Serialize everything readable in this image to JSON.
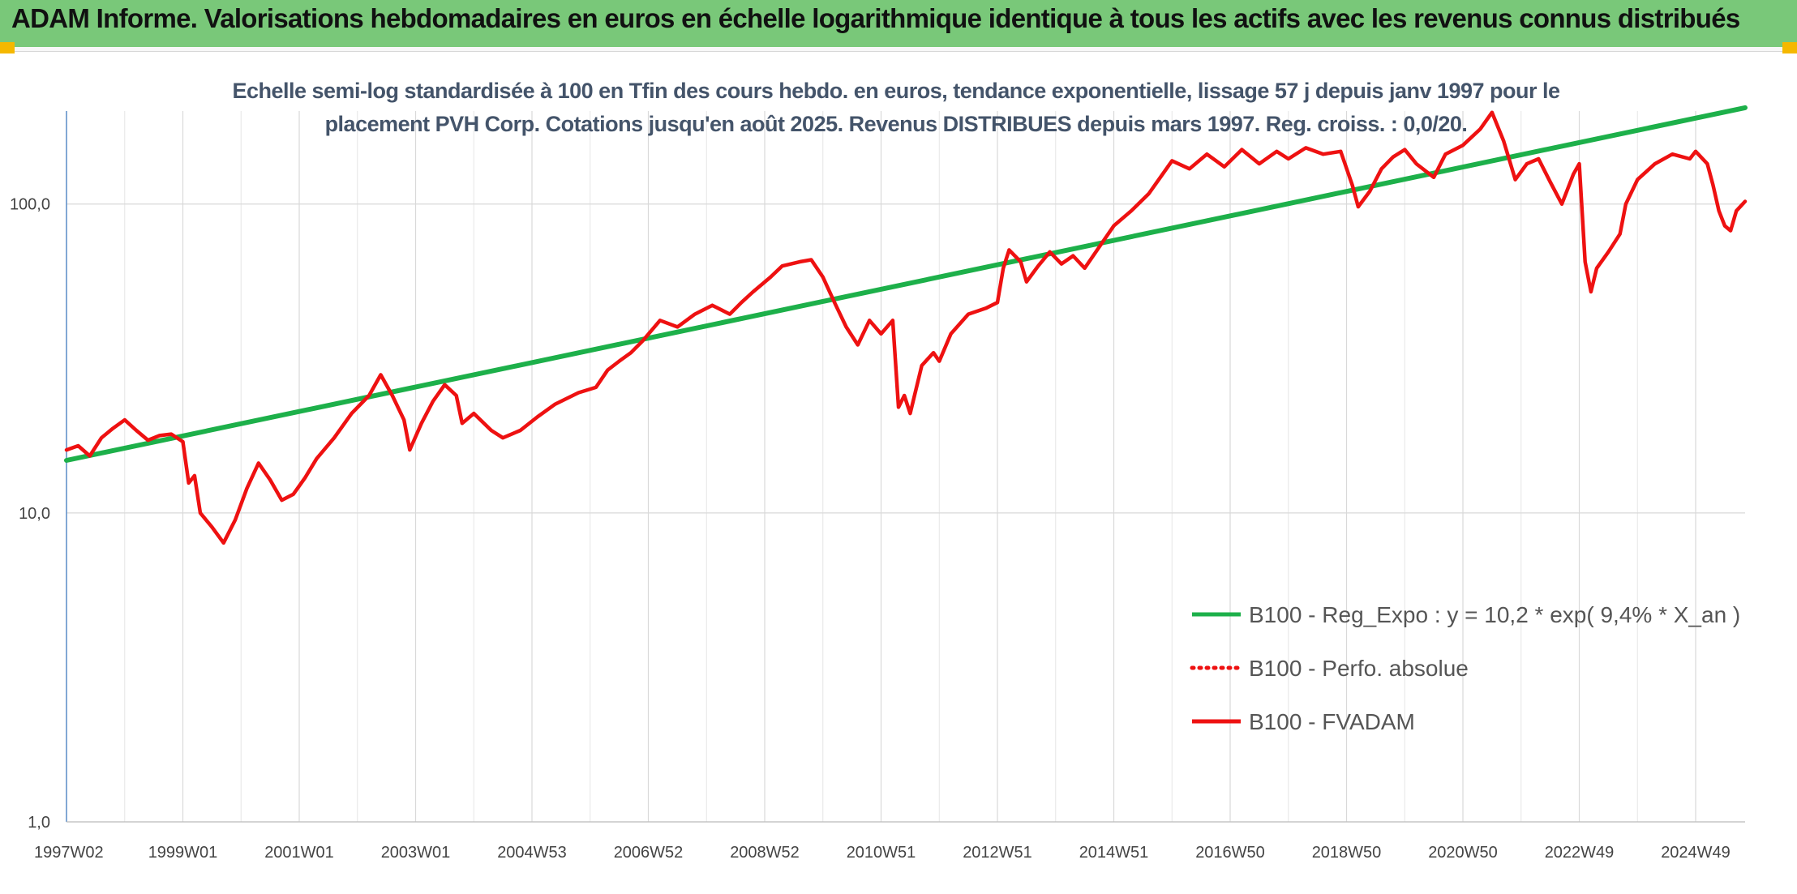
{
  "header": {
    "title": "ADAM Informe. Valorisations hebdomadaires en euros en échelle logarithmique identique à tous les actifs avec les revenus connus distribués"
  },
  "colors": {
    "header_bg": "#79c879",
    "accent": "#f5b800",
    "series_red": "#ee1111",
    "series_green": "#1db04a"
  },
  "chart_data": {
    "type": "line",
    "title": "Echelle semi-log standardisée à 100 en Tfin des cours hebdo. en euros, tendance exponentielle, lissage 57 j depuis janv 1997 pour le placement PVH Corp. Cotations jusqu'en août 2025. Revenus DISTRIBUES depuis mars 1997. Reg. croiss. : 0,0/20.",
    "title_lines": [
      "Echelle semi-log standardisée à 100 en Tfin des cours hebdo. en euros, tendance exponentielle, lissage 57 j depuis janv 1997 pour le",
      "placement PVH Corp. Cotations jusqu'en août 2025. Revenus DISTRIBUES depuis mars 1997. Reg. croiss. : 0,0/20."
    ],
    "y_scale": "log",
    "ylim": [
      1,
      200
    ],
    "xlim": [
      1997.0,
      2025.85
    ],
    "y_ticks": [
      {
        "value": 1,
        "label": "1,0"
      },
      {
        "value": 10,
        "label": "10,0"
      },
      {
        "value": 100,
        "label": "100,0"
      }
    ],
    "x_ticks": [
      {
        "value": 1997.0,
        "label": "1997W02"
      },
      {
        "value": 1999.0,
        "label": "1999W01"
      },
      {
        "value": 2001.0,
        "label": "2001W01"
      },
      {
        "value": 2003.0,
        "label": "2003W01"
      },
      {
        "value": 2005.0,
        "label": "2004W53"
      },
      {
        "value": 2007.0,
        "label": "2006W52"
      },
      {
        "value": 2009.0,
        "label": "2008W52"
      },
      {
        "value": 2011.0,
        "label": "2010W51"
      },
      {
        "value": 2013.0,
        "label": "2012W51"
      },
      {
        "value": 2015.0,
        "label": "2014W51"
      },
      {
        "value": 2017.0,
        "label": "2016W50"
      },
      {
        "value": 2019.0,
        "label": "2018W50"
      },
      {
        "value": 2021.0,
        "label": "2020W50"
      },
      {
        "value": 2023.0,
        "label": "2022W49"
      },
      {
        "value": 2025.0,
        "label": "2024W49"
      }
    ],
    "grid": true,
    "legend_position": "bottom-right",
    "series": [
      {
        "name": "B100 - Reg_Expo : y = 10,2 * exp( 9,4% *  X_an )",
        "color": "#1db04a",
        "style": "solid",
        "points": [
          [
            1997.0,
            14.8
          ],
          [
            2025.85,
            205
          ]
        ]
      },
      {
        "name": "B100 - Perfo. absolue",
        "color": "#ee1111",
        "style": "dotted",
        "points": []
      },
      {
        "name": "B100 - FVADAM",
        "color": "#ee1111",
        "style": "solid",
        "points": [
          [
            1997.0,
            16.0
          ],
          [
            1997.2,
            16.5
          ],
          [
            1997.4,
            15.3
          ],
          [
            1997.6,
            17.5
          ],
          [
            1997.8,
            18.8
          ],
          [
            1998.0,
            20.0
          ],
          [
            1998.2,
            18.5
          ],
          [
            1998.4,
            17.2
          ],
          [
            1998.6,
            17.8
          ],
          [
            1998.8,
            18.0
          ],
          [
            1999.0,
            17.0
          ],
          [
            1999.1,
            12.5
          ],
          [
            1999.2,
            13.2
          ],
          [
            1999.3,
            10.0
          ],
          [
            1999.5,
            9.0
          ],
          [
            1999.7,
            8.0
          ],
          [
            1999.9,
            9.5
          ],
          [
            2000.1,
            12.0
          ],
          [
            2000.3,
            14.5
          ],
          [
            2000.5,
            12.8
          ],
          [
            2000.7,
            11.0
          ],
          [
            2000.9,
            11.5
          ],
          [
            2001.1,
            13.0
          ],
          [
            2001.3,
            15.0
          ],
          [
            2001.6,
            17.5
          ],
          [
            2001.9,
            21.0
          ],
          [
            2002.2,
            24.0
          ],
          [
            2002.4,
            28.0
          ],
          [
            2002.6,
            24.0
          ],
          [
            2002.8,
            20.0
          ],
          [
            2002.9,
            16.0
          ],
          [
            2003.1,
            19.5
          ],
          [
            2003.3,
            23.0
          ],
          [
            2003.5,
            26.0
          ],
          [
            2003.7,
            24.0
          ],
          [
            2003.8,
            19.5
          ],
          [
            2004.0,
            21.0
          ],
          [
            2004.3,
            18.5
          ],
          [
            2004.5,
            17.5
          ],
          [
            2004.8,
            18.5
          ],
          [
            2005.1,
            20.5
          ],
          [
            2005.4,
            22.5
          ],
          [
            2005.8,
            24.5
          ],
          [
            2006.1,
            25.5
          ],
          [
            2006.3,
            29.0
          ],
          [
            2006.5,
            31.0
          ],
          [
            2006.7,
            33.0
          ],
          [
            2006.9,
            36.0
          ],
          [
            2007.2,
            42.0
          ],
          [
            2007.5,
            40.0
          ],
          [
            2007.8,
            44.0
          ],
          [
            2008.1,
            47.0
          ],
          [
            2008.4,
            44.0
          ],
          [
            2008.6,
            48.0
          ],
          [
            2008.8,
            52.0
          ],
          [
            2009.1,
            58.0
          ],
          [
            2009.3,
            63.0
          ],
          [
            2009.6,
            65.0
          ],
          [
            2009.8,
            66.0
          ],
          [
            2010.0,
            58.0
          ],
          [
            2010.2,
            48.0
          ],
          [
            2010.4,
            40.0
          ],
          [
            2010.6,
            35.0
          ],
          [
            2010.8,
            42.0
          ],
          [
            2011.0,
            38.0
          ],
          [
            2011.2,
            42.0
          ],
          [
            2011.3,
            22.0
          ],
          [
            2011.4,
            24.0
          ],
          [
            2011.5,
            21.0
          ],
          [
            2011.7,
            30.0
          ],
          [
            2011.9,
            33.0
          ],
          [
            2012.0,
            31.0
          ],
          [
            2012.2,
            38.0
          ],
          [
            2012.5,
            44.0
          ],
          [
            2012.8,
            46.0
          ],
          [
            2013.0,
            48.0
          ],
          [
            2013.1,
            62.0
          ],
          [
            2013.2,
            71.0
          ],
          [
            2013.4,
            65.0
          ],
          [
            2013.5,
            56.0
          ],
          [
            2013.7,
            63.0
          ],
          [
            2013.9,
            70.0
          ],
          [
            2014.1,
            64.0
          ],
          [
            2014.3,
            68.0
          ],
          [
            2014.5,
            62.0
          ],
          [
            2014.8,
            75.0
          ],
          [
            2015.0,
            85.0
          ],
          [
            2015.3,
            95.0
          ],
          [
            2015.6,
            108.0
          ],
          [
            2015.8,
            122.0
          ],
          [
            2016.0,
            138.0
          ],
          [
            2016.3,
            130.0
          ],
          [
            2016.6,
            145.0
          ],
          [
            2016.9,
            132.0
          ],
          [
            2017.2,
            150.0
          ],
          [
            2017.5,
            135.0
          ],
          [
            2017.8,
            148.0
          ],
          [
            2018.0,
            140.0
          ],
          [
            2018.3,
            152.0
          ],
          [
            2018.6,
            145.0
          ],
          [
            2018.9,
            148.0
          ],
          [
            2019.1,
            115.0
          ],
          [
            2019.2,
            98.0
          ],
          [
            2019.4,
            110.0
          ],
          [
            2019.6,
            130.0
          ],
          [
            2019.8,
            142.0
          ],
          [
            2020.0,
            150.0
          ],
          [
            2020.2,
            135.0
          ],
          [
            2020.5,
            122.0
          ],
          [
            2020.7,
            145.0
          ],
          [
            2021.0,
            155.0
          ],
          [
            2021.3,
            175.0
          ],
          [
            2021.5,
            198.0
          ],
          [
            2021.7,
            160.0
          ],
          [
            2021.9,
            120.0
          ],
          [
            2022.1,
            135.0
          ],
          [
            2022.3,
            140.0
          ],
          [
            2022.5,
            118.0
          ],
          [
            2022.7,
            100.0
          ],
          [
            2022.9,
            125.0
          ],
          [
            2023.0,
            135.0
          ],
          [
            2023.1,
            65.0
          ],
          [
            2023.2,
            52.0
          ],
          [
            2023.3,
            62.0
          ],
          [
            2023.5,
            70.0
          ],
          [
            2023.7,
            80.0
          ],
          [
            2023.8,
            100.0
          ],
          [
            2024.0,
            120.0
          ],
          [
            2024.3,
            135.0
          ],
          [
            2024.6,
            145.0
          ],
          [
            2024.9,
            140.0
          ],
          [
            2025.0,
            148.0
          ],
          [
            2025.2,
            135.0
          ],
          [
            2025.3,
            115.0
          ],
          [
            2025.4,
            95.0
          ],
          [
            2025.5,
            85.0
          ],
          [
            2025.6,
            82.0
          ],
          [
            2025.7,
            95.0
          ],
          [
            2025.85,
            102.0
          ]
        ]
      }
    ]
  }
}
